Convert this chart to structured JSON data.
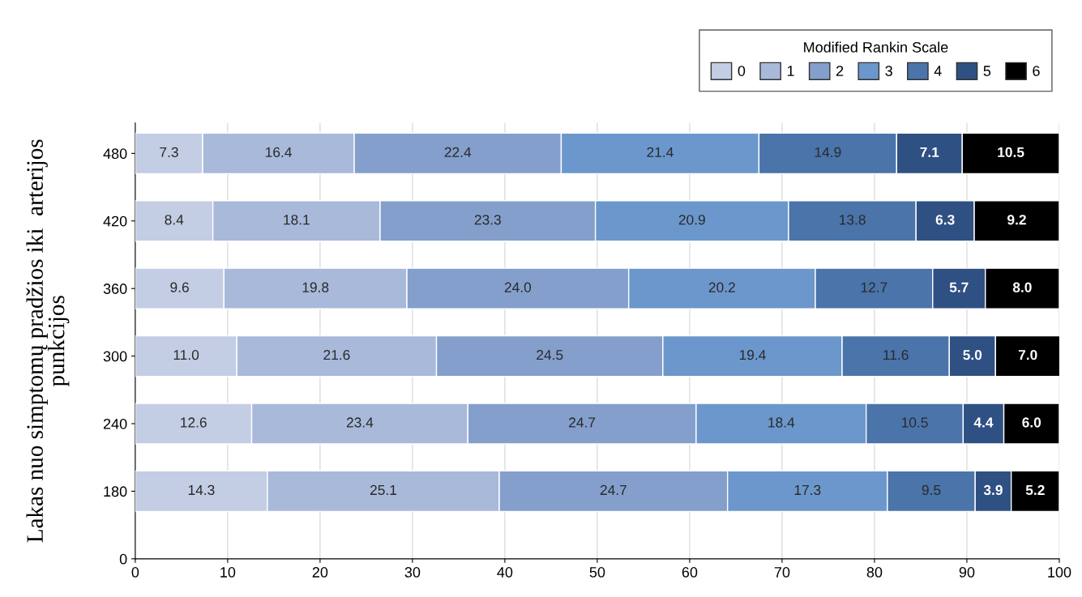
{
  "chart_data": {
    "type": "bar",
    "orientation": "horizontal",
    "stacked": true,
    "ylabel": "Lakas nuo simptomų pradžios iki  arterijos\npunkcijos",
    "legend_title": "Modified Rankin Scale",
    "legend": "top right",
    "categories": [
      "480",
      "420",
      "360",
      "300",
      "240",
      "180",
      "0"
    ],
    "xlim": [
      0,
      100
    ],
    "xticks": [
      0,
      10,
      20,
      30,
      40,
      50,
      60,
      70,
      80,
      90,
      100
    ],
    "grid": "x",
    "series": [
      {
        "name": "0",
        "color": "#c3cde4",
        "values": [
          7.3,
          8.4,
          9.6,
          11.0,
          12.6,
          14.3,
          null
        ],
        "value_labels": [
          "7.3",
          "8.4",
          "9.6",
          "11.0",
          "12.6",
          "14.3",
          null
        ]
      },
      {
        "name": "1",
        "color": "#a8b9da",
        "values": [
          16.4,
          18.1,
          19.8,
          21.6,
          23.4,
          25.1,
          null
        ],
        "value_labels": [
          "16.4",
          "18.1",
          "19.8",
          "21.6",
          "23.4",
          "25.1",
          null
        ]
      },
      {
        "name": "2",
        "color": "#849fcc",
        "values": [
          22.4,
          23.3,
          24.0,
          24.5,
          24.7,
          24.7,
          null
        ],
        "value_labels": [
          "22.4",
          "23.3",
          "24.0",
          "24.5",
          "24.7",
          "24.7",
          null
        ]
      },
      {
        "name": "3",
        "color": "#6b97cc",
        "values": [
          21.4,
          20.9,
          20.2,
          19.4,
          18.4,
          17.3,
          null
        ],
        "value_labels": [
          "21.4",
          "20.9",
          "20.2",
          "19.4",
          "18.4",
          "17.3",
          null
        ]
      },
      {
        "name": "4",
        "color": "#4a74aa",
        "values": [
          14.9,
          13.8,
          12.7,
          11.6,
          10.5,
          9.5,
          null
        ],
        "value_labels": [
          "14.9",
          "13.8",
          "12.7",
          "11.6",
          "10.5",
          "9.5",
          null
        ]
      },
      {
        "name": "5",
        "color": "#2f5083",
        "values": [
          7.1,
          6.3,
          5.7,
          5.0,
          4.4,
          3.9,
          null
        ],
        "value_labels": [
          "7.1",
          "6.3",
          "5.7",
          "5.0",
          "4.4",
          "3.9",
          null
        ]
      },
      {
        "name": "6",
        "color": "#000000",
        "values": [
          10.5,
          9.2,
          8.0,
          7.0,
          6.0,
          5.2,
          null
        ],
        "value_labels": [
          "10.5",
          "9.2",
          "8.0",
          "7.0",
          "6.0",
          "5.2",
          null
        ]
      }
    ]
  }
}
